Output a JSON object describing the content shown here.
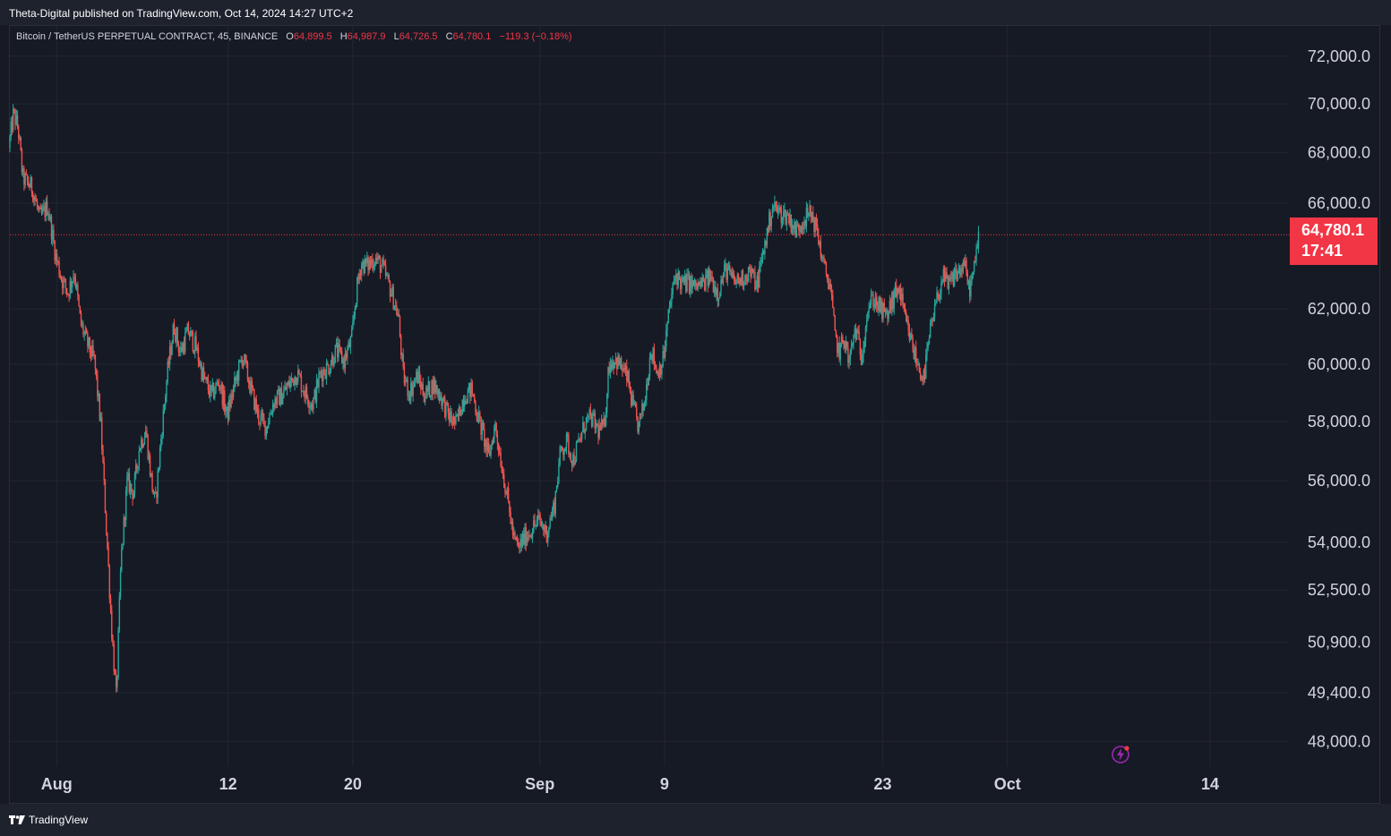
{
  "header": {
    "publisher": "Theta-Digital published on TradingView.com, Oct 14, 2024 14:27 UTC+2"
  },
  "legend": {
    "symbol": "Bitcoin / TetherUS PERPETUAL CONTRACT, 45, BINANCE",
    "open_label": "O",
    "open": "64,899.5",
    "high_label": "H",
    "high": "64,987.9",
    "low_label": "L",
    "low": "64,726.5",
    "close_label": "C",
    "close": "64,780.1",
    "change": "−119.3 (−0.18%)"
  },
  "price_tag": {
    "price": "64,780.1",
    "countdown": "17:41"
  },
  "footer": {
    "brand": "TradingView"
  },
  "colors": {
    "up": "#26a69a",
    "down": "#ef5350",
    "tag": "#f23645",
    "bg": "#161a25"
  },
  "chart_data": {
    "type": "candlestick",
    "title": "Bitcoin / TetherUS PERPETUAL CONTRACT, 45, BINANCE",
    "interval": "45m",
    "y_ticks": [
      72000,
      70000,
      68000,
      66000,
      62000,
      60000,
      58000,
      56000,
      54000,
      52500,
      50900,
      49400,
      48000
    ],
    "y_tick_labels": [
      "72,000.0",
      "70,000.0",
      "68,000.0",
      "66,000.0",
      "62,000.0",
      "60,000.0",
      "58,000.0",
      "56,000.0",
      "54,000.0",
      "52,500.0",
      "50,900.0",
      "49,400.0",
      "48,000.0"
    ],
    "y_scale": "log",
    "ylim": [
      47300,
      73300
    ],
    "x_ticks": [
      {
        "label": "Aug",
        "day": 6
      },
      {
        "label": "12",
        "day": 17
      },
      {
        "label": "20",
        "day": 25
      },
      {
        "label": "Sep",
        "day": 37
      },
      {
        "label": "9",
        "day": 45
      },
      {
        "label": "23",
        "day": 59
      },
      {
        "label": "Oct",
        "day": 67
      },
      {
        "label": "14",
        "day": 80
      }
    ],
    "x_range_days": [
      3,
      85
    ],
    "last_price": 64780.1,
    "price_path": [
      [
        3.0,
        68200
      ],
      [
        3.3,
        69600
      ],
      [
        3.6,
        69000
      ],
      [
        3.9,
        67000
      ],
      [
        4.5,
        66600
      ],
      [
        5.0,
        65400
      ],
      [
        5.5,
        65900
      ],
      [
        6.0,
        64000
      ],
      [
        6.4,
        63100
      ],
      [
        6.8,
        62600
      ],
      [
        7.2,
        63400
      ],
      [
        7.6,
        61500
      ],
      [
        8.0,
        60800
      ],
      [
        8.5,
        60100
      ],
      [
        8.9,
        57900
      ],
      [
        9.2,
        55000
      ],
      [
        9.6,
        51300
      ],
      [
        9.9,
        49200
      ],
      [
        10.2,
        53400
      ],
      [
        10.6,
        56000
      ],
      [
        11.0,
        55600
      ],
      [
        11.4,
        57200
      ],
      [
        11.8,
        57700
      ],
      [
        12.1,
        56200
      ],
      [
        12.4,
        55200
      ],
      [
        12.8,
        57600
      ],
      [
        13.2,
        59800
      ],
      [
        13.6,
        61400
      ],
      [
        14.0,
        60400
      ],
      [
        14.5,
        61200
      ],
      [
        15.0,
        60600
      ],
      [
        15.5,
        59500
      ],
      [
        16.0,
        58900
      ],
      [
        16.5,
        59400
      ],
      [
        17.0,
        58200
      ],
      [
        17.5,
        59300
      ],
      [
        18.0,
        60300
      ],
      [
        18.5,
        59200
      ],
      [
        19.0,
        58200
      ],
      [
        19.5,
        57800
      ],
      [
        20.0,
        58700
      ],
      [
        20.5,
        58900
      ],
      [
        21.0,
        59300
      ],
      [
        21.5,
        59700
      ],
      [
        22.0,
        59000
      ],
      [
        22.5,
        58600
      ],
      [
        23.0,
        59700
      ],
      [
        23.5,
        59900
      ],
      [
        24.0,
        60500
      ],
      [
        24.5,
        60100
      ],
      [
        25.0,
        60900
      ],
      [
        25.3,
        62600
      ],
      [
        25.6,
        63700
      ],
      [
        26.0,
        63600
      ],
      [
        26.5,
        63900
      ],
      [
        27.0,
        63500
      ],
      [
        27.5,
        62700
      ],
      [
        28.0,
        61700
      ],
      [
        28.3,
        59600
      ],
      [
        28.7,
        59000
      ],
      [
        29.2,
        59600
      ],
      [
        29.7,
        58900
      ],
      [
        30.2,
        59300
      ],
      [
        30.7,
        58900
      ],
      [
        31.2,
        58200
      ],
      [
        31.7,
        57900
      ],
      [
        32.2,
        58900
      ],
      [
        32.7,
        59100
      ],
      [
        33.0,
        58400
      ],
      [
        33.4,
        57600
      ],
      [
        33.8,
        56800
      ],
      [
        34.2,
        57900
      ],
      [
        34.6,
        56600
      ],
      [
        35.0,
        55400
      ],
      [
        35.4,
        54100
      ],
      [
        35.7,
        53800
      ],
      [
        36.0,
        54100
      ],
      [
        36.5,
        54400
      ],
      [
        37.0,
        54700
      ],
      [
        37.5,
        54300
      ],
      [
        38.0,
        55200
      ],
      [
        38.4,
        57000
      ],
      [
        38.8,
        57300
      ],
      [
        39.2,
        56700
      ],
      [
        39.6,
        57300
      ],
      [
        40.0,
        58000
      ],
      [
        40.4,
        58100
      ],
      [
        40.8,
        57700
      ],
      [
        41.2,
        57800
      ],
      [
        41.5,
        60000
      ],
      [
        41.9,
        60200
      ],
      [
        42.3,
        59900
      ],
      [
        42.7,
        59500
      ],
      [
        43.0,
        58600
      ],
      [
        43.4,
        57800
      ],
      [
        43.8,
        58700
      ],
      [
        44.2,
        60600
      ],
      [
        44.6,
        59700
      ],
      [
        45.0,
        60200
      ],
      [
        45.4,
        62100
      ],
      [
        45.8,
        63300
      ],
      [
        46.2,
        62900
      ],
      [
        46.6,
        63000
      ],
      [
        47.0,
        62800
      ],
      [
        47.5,
        62900
      ],
      [
        48.0,
        63200
      ],
      [
        48.5,
        62600
      ],
      [
        49.0,
        63500
      ],
      [
        49.5,
        63000
      ],
      [
        50.0,
        63100
      ],
      [
        50.5,
        63400
      ],
      [
        51.0,
        62900
      ],
      [
        51.5,
        64400
      ],
      [
        52.0,
        65900
      ],
      [
        52.5,
        65600
      ],
      [
        53.0,
        65500
      ],
      [
        53.5,
        64900
      ],
      [
        54.0,
        65400
      ],
      [
        54.5,
        65600
      ],
      [
        54.9,
        64800
      ],
      [
        55.3,
        63500
      ],
      [
        55.7,
        62900
      ],
      [
        56.0,
        61000
      ],
      [
        56.3,
        60400
      ],
      [
        56.6,
        61000
      ],
      [
        56.9,
        60000
      ],
      [
        57.3,
        61300
      ],
      [
        57.7,
        60300
      ],
      [
        58.1,
        62000
      ],
      [
        58.5,
        62400
      ],
      [
        58.9,
        62000
      ],
      [
        59.3,
        61700
      ],
      [
        59.7,
        62300
      ],
      [
        60.1,
        62800
      ],
      [
        60.5,
        61600
      ],
      [
        60.9,
        60800
      ],
      [
        61.3,
        60000
      ],
      [
        61.7,
        59500
      ],
      [
        62.1,
        61100
      ],
      [
        62.5,
        62200
      ],
      [
        62.9,
        63200
      ],
      [
        63.3,
        62800
      ],
      [
        63.7,
        63300
      ],
      [
        64.0,
        63400
      ],
      [
        64.3,
        63700
      ],
      [
        64.6,
        62700
      ],
      [
        64.9,
        63300
      ],
      [
        65.2,
        64700
      ]
    ]
  }
}
